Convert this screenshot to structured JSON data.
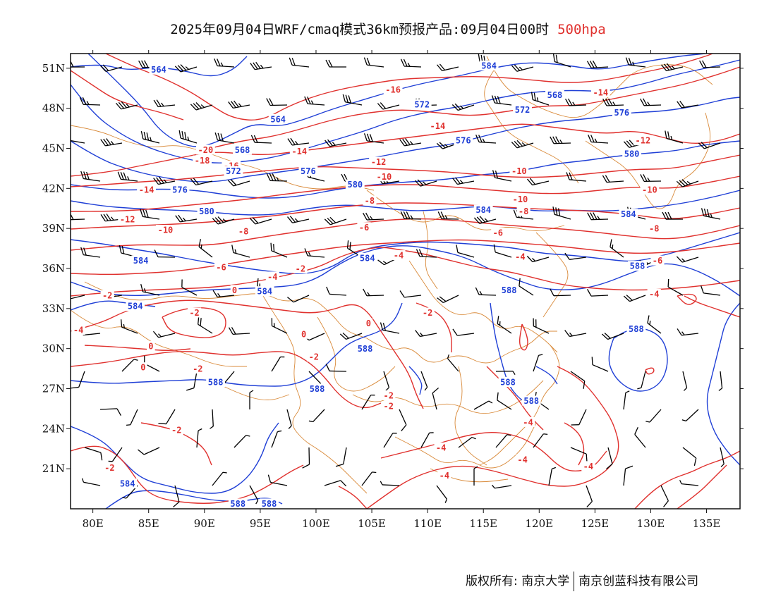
{
  "title": {
    "main": "2025年09月04日WRF/cmaq模式36km预报产品:09月04日00时",
    "level": "500hpa"
  },
  "colors": {
    "height_contour": "#1f3fd6",
    "temperature_contour": "#e0312e",
    "boundary": "#d98a3a",
    "wind_barb": "#000000"
  },
  "axes": {
    "lon_labels": [
      "80E",
      "85E",
      "90E",
      "95E",
      "100E",
      "105E",
      "110E",
      "115E",
      "120E",
      "125E",
      "130E",
      "135E"
    ],
    "lat_labels": [
      "51N",
      "48N",
      "45N",
      "42N",
      "39N",
      "36N",
      "33N",
      "30N",
      "27N",
      "24N",
      "21N"
    ]
  },
  "height_contours": [
    {
      "label": "564",
      "lon": 85.9,
      "lat": 50.9
    },
    {
      "label": "584",
      "lon": 115.5,
      "lat": 51.2
    },
    {
      "label": "568",
      "lon": 121.4,
      "lat": 49.0
    },
    {
      "label": "572",
      "lon": 118.5,
      "lat": 47.9
    },
    {
      "label": "564",
      "lon": 96.6,
      "lat": 47.2
    },
    {
      "label": "572",
      "lon": 109.5,
      "lat": 48.3
    },
    {
      "label": "576",
      "lon": 127.4,
      "lat": 47.7
    },
    {
      "label": "576",
      "lon": 113.2,
      "lat": 45.6
    },
    {
      "label": "568",
      "lon": 93.4,
      "lat": 44.9
    },
    {
      "label": "572",
      "lon": 92.6,
      "lat": 43.3
    },
    {
      "label": "576",
      "lon": 99.3,
      "lat": 43.3
    },
    {
      "label": "580",
      "lon": 128.3,
      "lat": 44.6
    },
    {
      "label": "580",
      "lon": 103.5,
      "lat": 42.3
    },
    {
      "label": "576",
      "lon": 87.8,
      "lat": 41.9
    },
    {
      "label": "580",
      "lon": 90.2,
      "lat": 40.3
    },
    {
      "label": "584",
      "lon": 115.0,
      "lat": 40.4
    },
    {
      "label": "584",
      "lon": 128.0,
      "lat": 40.1
    },
    {
      "label": "584",
      "lon": 84.3,
      "lat": 36.6
    },
    {
      "label": "584",
      "lon": 104.6,
      "lat": 36.8
    },
    {
      "label": "584",
      "lon": 95.4,
      "lat": 34.3
    },
    {
      "label": "588",
      "lon": 117.3,
      "lat": 34.4
    },
    {
      "label": "588",
      "lon": 128.8,
      "lat": 36.2
    },
    {
      "label": "584",
      "lon": 83.8,
      "lat": 33.2
    },
    {
      "label": "588",
      "lon": 128.7,
      "lat": 31.5
    },
    {
      "label": "588",
      "lon": 104.4,
      "lat": 30.0
    },
    {
      "label": "588",
      "lon": 91.0,
      "lat": 27.5
    },
    {
      "label": "588",
      "lon": 100.1,
      "lat": 27.0
    },
    {
      "label": "588",
      "lon": 117.2,
      "lat": 27.5
    },
    {
      "label": "588",
      "lon": 119.3,
      "lat": 26.1
    },
    {
      "label": "584",
      "lon": 83.1,
      "lat": 19.9
    },
    {
      "label": "588",
      "lon": 93.0,
      "lat": 18.4
    },
    {
      "label": "588",
      "lon": 95.8,
      "lat": 18.4
    }
  ],
  "temperature_contours": [
    {
      "label": "-16",
      "lon": 106.9,
      "lat": 49.4
    },
    {
      "label": "-14",
      "lon": 110.9,
      "lat": 46.7
    },
    {
      "label": "-14",
      "lon": 125.5,
      "lat": 49.2
    },
    {
      "label": "-20",
      "lon": 90.1,
      "lat": 44.9
    },
    {
      "label": "-18",
      "lon": 89.8,
      "lat": 44.1
    },
    {
      "label": "-16",
      "lon": 92.4,
      "lat": 43.7
    },
    {
      "label": "-14",
      "lon": 98.5,
      "lat": 44.8
    },
    {
      "label": "-12",
      "lon": 105.6,
      "lat": 44.0
    },
    {
      "label": "-10",
      "lon": 106.1,
      "lat": 42.9
    },
    {
      "label": "-10",
      "lon": 118.2,
      "lat": 43.3
    },
    {
      "label": "-12",
      "lon": 129.3,
      "lat": 45.6
    },
    {
      "label": "-14",
      "lon": 84.8,
      "lat": 41.9
    },
    {
      "label": "-10",
      "lon": 129.9,
      "lat": 41.9
    },
    {
      "label": "-8",
      "lon": 104.8,
      "lat": 41.1
    },
    {
      "label": "-10",
      "lon": 118.3,
      "lat": 41.2
    },
    {
      "label": "-8",
      "lon": 118.6,
      "lat": 40.3
    },
    {
      "label": "-12",
      "lon": 83.1,
      "lat": 39.7
    },
    {
      "label": "-10",
      "lon": 86.5,
      "lat": 38.9
    },
    {
      "label": "-8",
      "lon": 93.5,
      "lat": 38.8
    },
    {
      "label": "-6",
      "lon": 104.3,
      "lat": 39.1
    },
    {
      "label": "-6",
      "lon": 116.3,
      "lat": 38.7
    },
    {
      "label": "-8",
      "lon": 130.3,
      "lat": 39.0
    },
    {
      "label": "-6",
      "lon": 91.5,
      "lat": 36.1
    },
    {
      "label": "-4",
      "lon": 96.1,
      "lat": 35.4
    },
    {
      "label": "-2",
      "lon": 98.6,
      "lat": 36.0
    },
    {
      "label": "-4",
      "lon": 107.4,
      "lat": 37.0
    },
    {
      "label": "-4",
      "lon": 118.3,
      "lat": 36.9
    },
    {
      "label": "-6",
      "lon": 130.6,
      "lat": 36.6
    },
    {
      "label": "-2",
      "lon": 81.3,
      "lat": 34.0
    },
    {
      "label": "0",
      "lon": 92.7,
      "lat": 34.4
    },
    {
      "label": "-4",
      "lon": 130.3,
      "lat": 34.1
    },
    {
      "label": "-2",
      "lon": 89.1,
      "lat": 32.7
    },
    {
      "label": "-2",
      "lon": 110.0,
      "lat": 32.7
    },
    {
      "label": "0",
      "lon": 104.7,
      "lat": 31.9
    },
    {
      "label": "-4",
      "lon": 78.7,
      "lat": 31.4
    },
    {
      "label": "0",
      "lon": 85.2,
      "lat": 30.2
    },
    {
      "label": "0",
      "lon": 98.9,
      "lat": 31.1
    },
    {
      "label": "-2",
      "lon": 99.8,
      "lat": 29.4
    },
    {
      "label": "0",
      "lon": 84.5,
      "lat": 28.6
    },
    {
      "label": "-2",
      "lon": 89.4,
      "lat": 28.5
    },
    {
      "label": "-2",
      "lon": 106.5,
      "lat": 26.5
    },
    {
      "label": "-2",
      "lon": 106.5,
      "lat": 25.7
    },
    {
      "label": "-4",
      "lon": 119.0,
      "lat": 24.5
    },
    {
      "label": "-2",
      "lon": 87.5,
      "lat": 23.9
    },
    {
      "label": "-4",
      "lon": 111.2,
      "lat": 22.6
    },
    {
      "label": "-4",
      "lon": 118.5,
      "lat": 21.7
    },
    {
      "label": "-4",
      "lon": 124.4,
      "lat": 21.2
    },
    {
      "label": "-2",
      "lon": 81.5,
      "lat": 21.1
    },
    {
      "label": "-4",
      "lon": 111.5,
      "lat": 20.5
    }
  ],
  "footer": {
    "copyright": "版权所有: 南京大学",
    "company": "南京创蓝科技有限公司"
  }
}
